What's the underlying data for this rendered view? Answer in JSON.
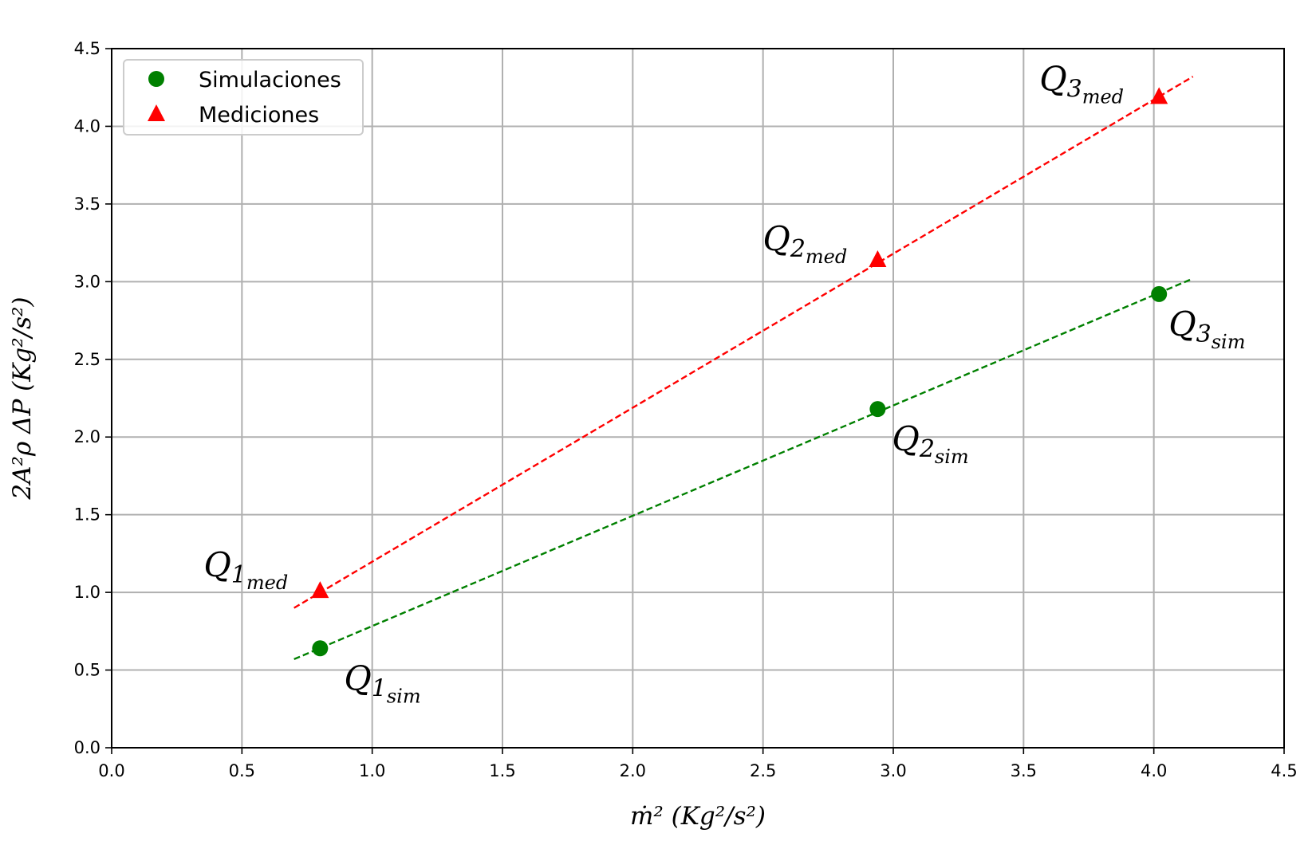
{
  "chart_data": {
    "type": "scatter",
    "xlabel": "ṁ² (Kg²/s²)",
    "ylabel": "2A²ρ ΔP (Kg²/s²)",
    "xlim": [
      0,
      4.5
    ],
    "ylim": [
      0,
      4.5
    ],
    "xticks": [
      "0.0",
      "0.5",
      "1.0",
      "1.5",
      "2.0",
      "2.5",
      "3.0",
      "3.5",
      "4.0",
      "4.5"
    ],
    "yticks": [
      "0.0",
      "0.5",
      "1.0",
      "1.5",
      "2.0",
      "2.5",
      "3.0",
      "3.5",
      "4.0",
      "4.5"
    ],
    "grid": true,
    "legend_position": "top-left",
    "series": [
      {
        "name": "Simulaciones",
        "marker": "circle",
        "color": "#008000",
        "x": [
          0.8,
          2.94,
          4.02
        ],
        "y": [
          0.64,
          2.18,
          2.92
        ],
        "labels": [
          {
            "base": "Q",
            "index": "1",
            "sub": "sim"
          },
          {
            "base": "Q",
            "index": "2",
            "sub": "sim"
          },
          {
            "base": "Q",
            "index": "3",
            "sub": "sim"
          }
        ],
        "fit_line": {
          "x": [
            0.7,
            4.15
          ],
          "y": [
            0.57,
            3.02
          ]
        }
      },
      {
        "name": "Mediciones",
        "marker": "triangle",
        "color": "#ff0000",
        "x": [
          0.8,
          2.94,
          4.02
        ],
        "y": [
          1.01,
          3.14,
          4.19
        ],
        "labels": [
          {
            "base": "Q",
            "index": "1",
            "sub": "med"
          },
          {
            "base": "Q",
            "index": "2",
            "sub": "med"
          },
          {
            "base": "Q",
            "index": "3",
            "sub": "med"
          }
        ],
        "fit_line": {
          "x": [
            0.7,
            4.15
          ],
          "y": [
            0.9,
            4.32
          ]
        }
      }
    ]
  }
}
